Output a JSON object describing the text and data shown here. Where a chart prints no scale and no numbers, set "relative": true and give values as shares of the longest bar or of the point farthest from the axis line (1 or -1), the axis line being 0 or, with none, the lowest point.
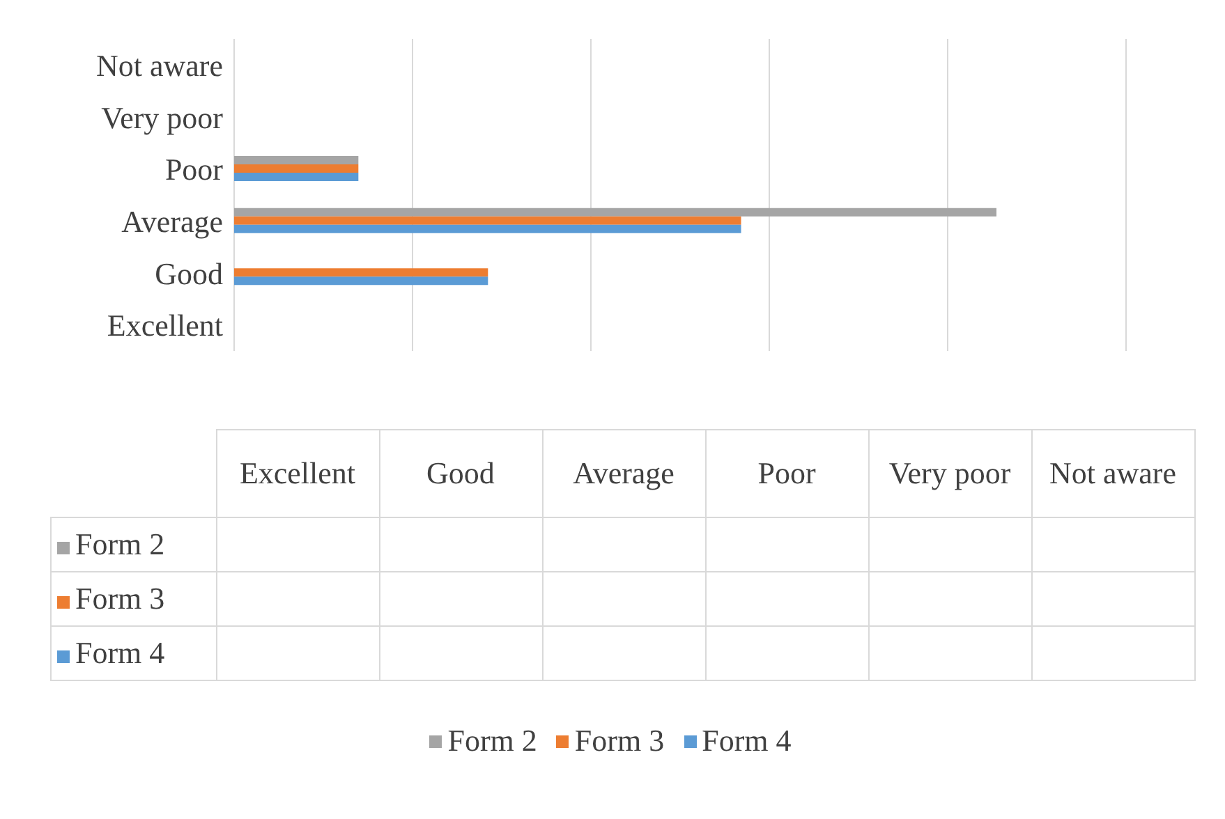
{
  "chart_data": {
    "type": "bar",
    "orientation": "horizontal",
    "relative": true,
    "grid": "x",
    "legend": "bottom",
    "categories": [
      "Not aware",
      "Very poor",
      "Poor",
      "Average",
      "Good",
      "Excellent"
    ],
    "series": [
      {
        "name": "Form 2",
        "color": "#a5a5a5",
        "values": [
          null,
          null,
          0.163,
          1,
          null,
          null
        ]
      },
      {
        "name": "Form 3",
        "color": "#ed7d31",
        "values": [
          null,
          null,
          0.163,
          0.665,
          0.333,
          null
        ]
      },
      {
        "name": "Form 4",
        "color": "#5b9bd5",
        "values": [
          null,
          null,
          0.163,
          0.665,
          0.333,
          null
        ]
      }
    ]
  }
}
